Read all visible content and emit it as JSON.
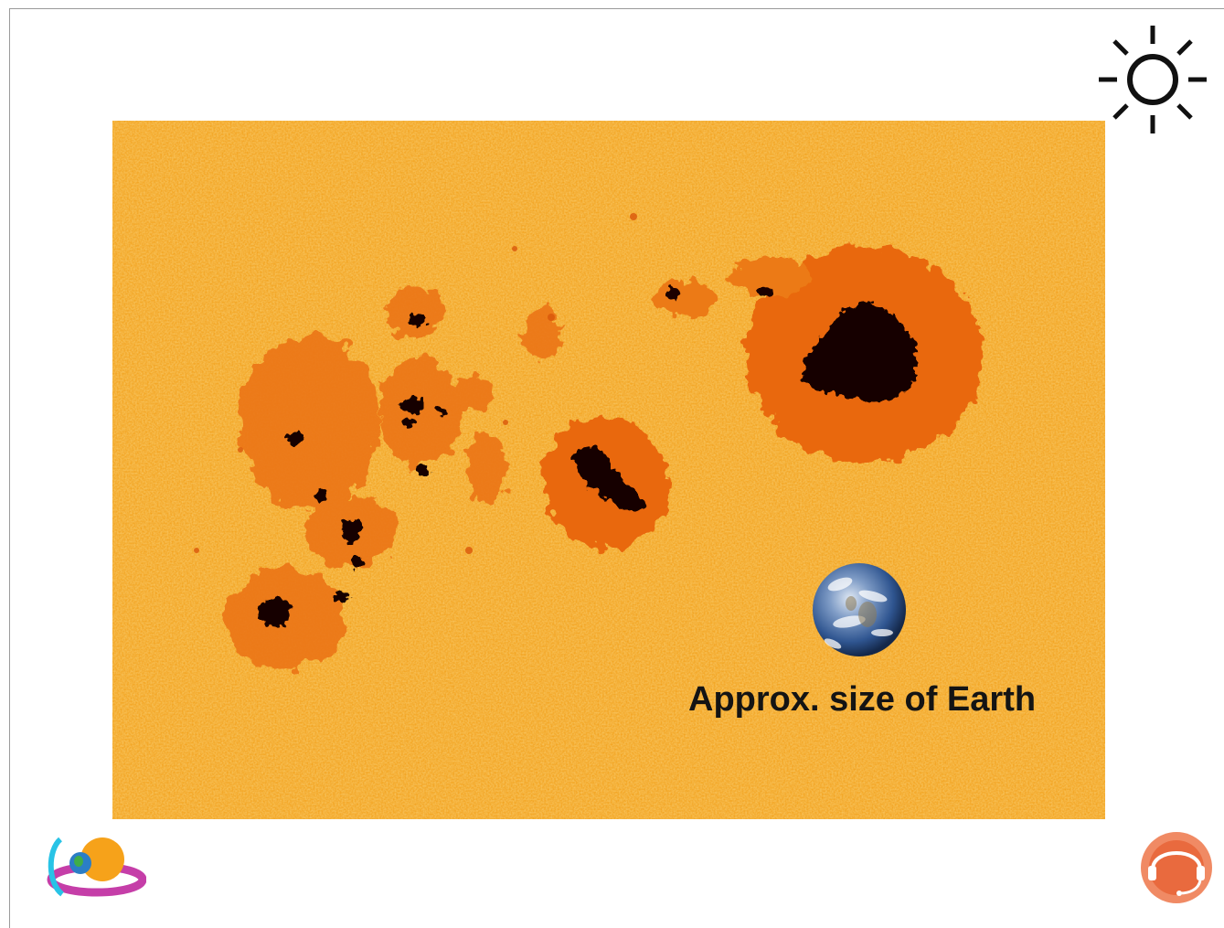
{
  "slide": {
    "caption": "Approx. size of Earth"
  },
  "icons": {
    "top_right": "sun-icon",
    "bottom_left": "mission-logo",
    "bottom_right": "headset-logo"
  },
  "colors": {
    "photosphere": "#f3a21a",
    "penumbra": "#e8650c",
    "umbra": "#120400",
    "earth_ocean": "#3f6fb0",
    "caption_text": "#141414"
  }
}
